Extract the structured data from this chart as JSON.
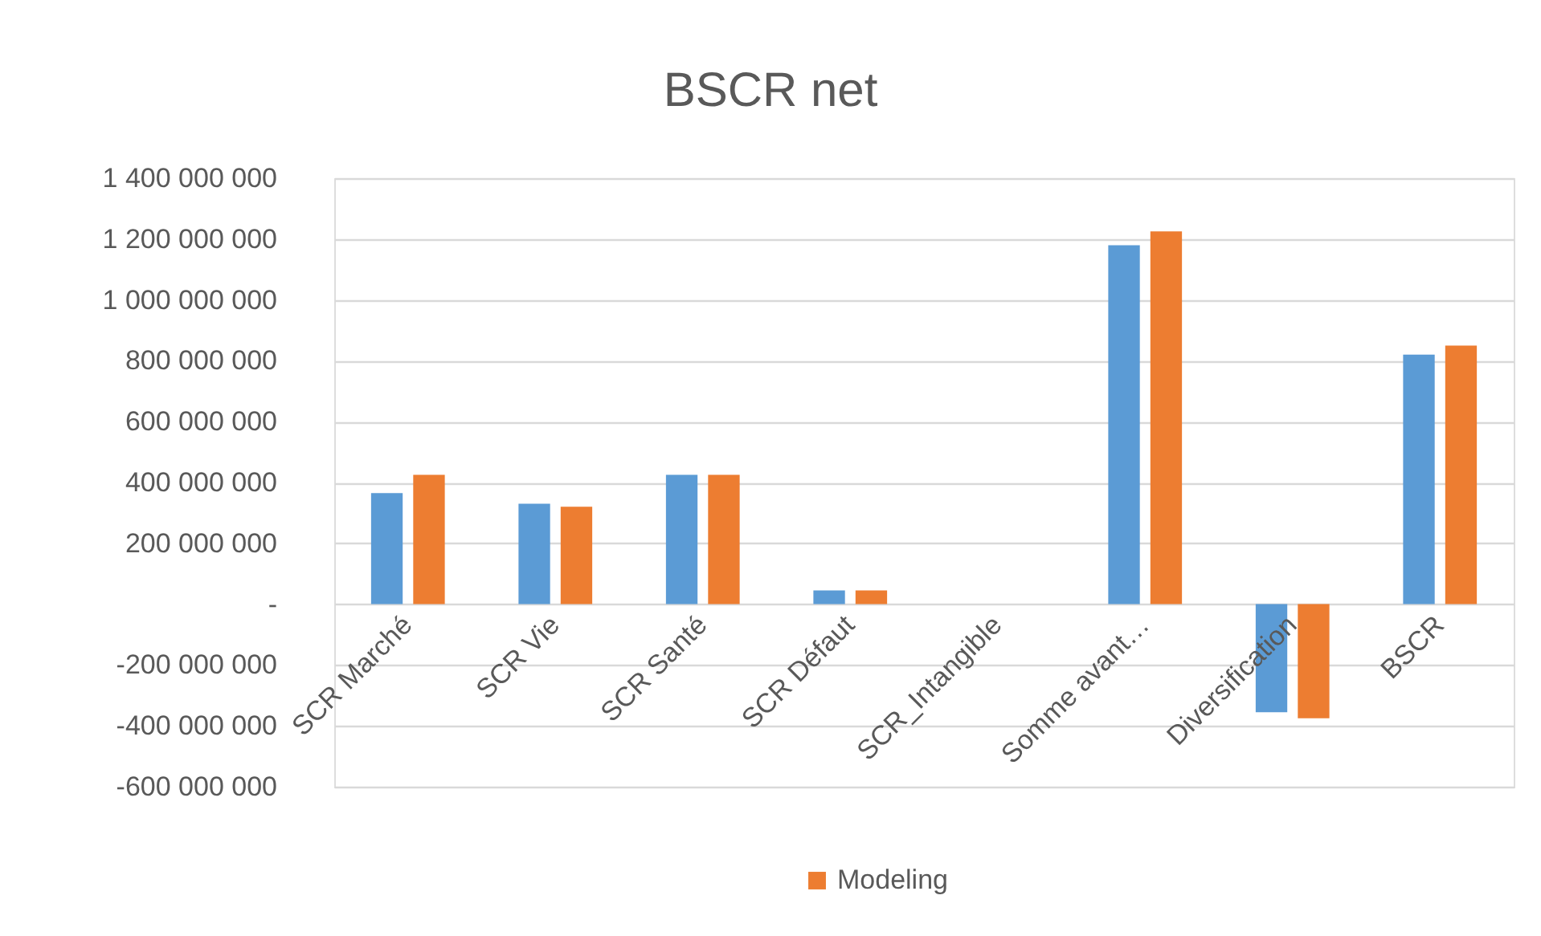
{
  "chart_data": {
    "type": "bar",
    "title": "BSCR net",
    "categories": [
      "SCR Marché",
      "SCR Vie",
      "SCR Santé",
      "SCR Défaut",
      "SCR_Intangible",
      "Somme avant…",
      "Diversification",
      "BSCR"
    ],
    "series": [
      {
        "color": "#5b9bd5",
        "values": [
          365000000,
          330000000,
          425000000,
          45000000,
          0,
          1180000000,
          -355000000,
          820000000
        ]
      },
      {
        "name": "Modeling",
        "color": "#ed7d31",
        "values": [
          425000000,
          320000000,
          425000000,
          45000000,
          0,
          1225000000,
          -375000000,
          850000000
        ]
      }
    ],
    "ylim": [
      -600000000,
      1400000000
    ],
    "yticks": [
      {
        "value": -600000000,
        "label": "-600 000 000"
      },
      {
        "value": -400000000,
        "label": "-400 000 000"
      },
      {
        "value": -200000000,
        "label": "-200 000 000"
      },
      {
        "value": 0,
        "label": "-"
      },
      {
        "value": 200000000,
        "label": "200 000 000"
      },
      {
        "value": 400000000,
        "label": "400 000 000"
      },
      {
        "value": 600000000,
        "label": "600 000 000"
      },
      {
        "value": 800000000,
        "label": "800 000 000"
      },
      {
        "value": 1000000000,
        "label": "1 000 000 000"
      },
      {
        "value": 1200000000,
        "label": "1 200 000 000"
      },
      {
        "value": 1400000000,
        "label": "1 400 000 000"
      }
    ],
    "grid": "y",
    "legend": "bottom"
  }
}
